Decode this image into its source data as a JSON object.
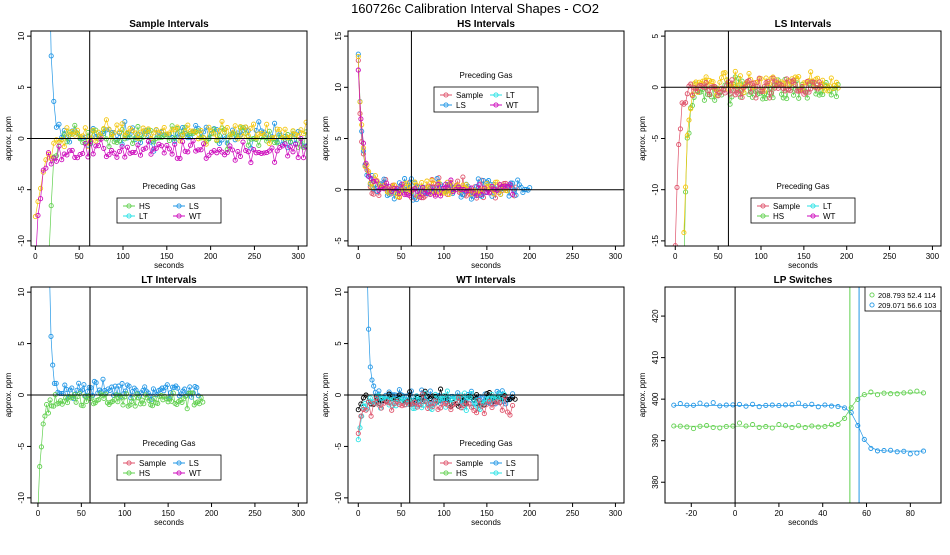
{
  "page_title": "160726c   Calibration Interval Shapes - CO2",
  "colors": {
    "Sample": "#df536b",
    "HS": "#61d04f",
    "LS": "#2297e6",
    "LT": "#28e2e5",
    "WT": "#cd0bbc",
    "Other": "#000000",
    "Gold": "#f5c710"
  },
  "chart_data": [
    {
      "id": "sample",
      "type": "scatter",
      "title": "Sample Intervals",
      "xlabel": "seconds",
      "ylabel": "approx. ppm",
      "xlim": [
        -5,
        310
      ],
      "ylim": [
        -10.5,
        10.5
      ],
      "xticks": [
        0,
        50,
        100,
        150,
        200,
        250,
        300
      ],
      "yticks": [
        -10,
        -5,
        0,
        5,
        10
      ],
      "xtick_labels": [
        "0",
        "50",
        "100",
        "150",
        "200",
        "250",
        "300"
      ],
      "ytick_labels": [
        "-10",
        "-5",
        "0",
        "5",
        "10"
      ],
      "vline": 62,
      "hline": 0,
      "legend": {
        "title": "Preceding Gas",
        "position": "bottom-center",
        "entries": [
          "HS",
          "LS",
          "LT",
          "WT"
        ]
      },
      "series": [
        {
          "key": "LS",
          "start": 15,
          "end": 310,
          "step": 3,
          "initial": 20,
          "tau": 3,
          "base": 0.3,
          "noise": 1.4
        },
        {
          "key": "HS",
          "start": 15,
          "end": 310,
          "step": 3,
          "initial": -13,
          "tau": 4,
          "base": 0.2,
          "noise": 1.2
        },
        {
          "key": "Gold",
          "start": 0,
          "end": 310,
          "step": 3,
          "initial": -8,
          "tau": 12,
          "base": 0.6,
          "noise": 1.2
        },
        {
          "key": "WT",
          "start": 0,
          "end": 310,
          "step": 3,
          "initial": -11,
          "tau": 6,
          "base": -1.2,
          "noise": 1.1
        }
      ]
    },
    {
      "id": "hs",
      "type": "scatter",
      "title": "HS Intervals",
      "xlabel": "seconds",
      "ylabel": "approx. ppm",
      "xlim": [
        -12,
        310
      ],
      "ylim": [
        -5.5,
        15.5
      ],
      "xticks": [
        0,
        50,
        100,
        150,
        200,
        250,
        300
      ],
      "yticks": [
        -5,
        0,
        5,
        10,
        15
      ],
      "xtick_labels": [
        "0",
        "50",
        "100",
        "150",
        "200",
        "250",
        "300"
      ],
      "ytick_labels": [
        "-5",
        "0",
        "5",
        "10",
        "15"
      ],
      "vline": 62,
      "hline": 0,
      "legend": {
        "title": "Preceding Gas",
        "position": "top-center",
        "entries": [
          "Sample",
          "LT",
          "LS",
          "WT"
        ]
      },
      "series": [
        {
          "key": "Sample",
          "start": 0,
          "end": 185,
          "step": 2,
          "initial": 12,
          "tau": 5,
          "base": 0,
          "noise": 1.3
        },
        {
          "key": "LS",
          "start": 0,
          "end": 200,
          "step": 2,
          "initial": 14,
          "tau": 5,
          "base": 0,
          "noise": 1.2
        },
        {
          "key": "Gold",
          "start": 0,
          "end": 175,
          "step": 2,
          "initial": 13,
          "tau": 5,
          "base": 0,
          "noise": 1.1
        },
        {
          "key": "WT",
          "start": 0,
          "end": 180,
          "step": 3,
          "initial": 11,
          "tau": 6,
          "base": 0,
          "noise": 0.9
        }
      ]
    },
    {
      "id": "ls",
      "type": "scatter",
      "title": "LS Intervals",
      "xlabel": "seconds",
      "ylabel": "approx. ppm",
      "xlim": [
        -12,
        310
      ],
      "ylim": [
        -15.5,
        5.5
      ],
      "xticks": [
        0,
        50,
        100,
        150,
        200,
        250,
        300
      ],
      "yticks": [
        -15,
        -10,
        -5,
        0,
        5
      ],
      "xtick_labels": [
        "0",
        "50",
        "100",
        "150",
        "200",
        "250",
        "300"
      ],
      "ytick_labels": [
        "-15",
        "-10",
        "-5",
        "0",
        "5"
      ],
      "vline": 62,
      "hline": 0,
      "legend": {
        "title": "Preceding Gas",
        "position": "bottom-center",
        "entries": [
          "Sample",
          "LT",
          "HS",
          "WT"
        ]
      },
      "series": [
        {
          "key": "HS",
          "start": 10,
          "end": 190,
          "step": 2,
          "initial": -16,
          "tau": 4,
          "base": -0.2,
          "noise": 1.5
        },
        {
          "key": "Gold",
          "start": 10,
          "end": 190,
          "step": 2,
          "initial": -15,
          "tau": 4,
          "base": 0.4,
          "noise": 1.2
        },
        {
          "key": "Sample",
          "start": 0,
          "end": 170,
          "step": 2,
          "initial": -16,
          "tau": 4,
          "base": 0,
          "noise": 1.0
        }
      ]
    },
    {
      "id": "lt",
      "type": "scatter",
      "title": "LT Intervals",
      "xlabel": "seconds",
      "ylabel": "approx. ppm",
      "xlim": [
        -8,
        310
      ],
      "ylim": [
        -10.5,
        10.5
      ],
      "xticks": [
        0,
        50,
        100,
        150,
        200,
        250,
        300
      ],
      "yticks": [
        -10,
        -5,
        0,
        5,
        10
      ],
      "xtick_labels": [
        "0",
        "50",
        "100",
        "150",
        "200",
        "250",
        "300"
      ],
      "ytick_labels": [
        "-10",
        "-5",
        "0",
        "5",
        "10"
      ],
      "vline": 60,
      "hline": 0,
      "legend": {
        "title": "Preceding Gas",
        "position": "bottom-center",
        "entries": [
          "Sample",
          "LS",
          "HS",
          "WT"
        ]
      },
      "series": [
        {
          "key": "LS",
          "start": 13,
          "end": 185,
          "step": 2,
          "initial": 12,
          "tau": 2.5,
          "base": 0.5,
          "noise": 1.1
        },
        {
          "key": "HS",
          "start": 0,
          "end": 190,
          "step": 2,
          "initial": -11,
          "tau": 4,
          "base": -0.5,
          "noise": 1.0
        }
      ]
    },
    {
      "id": "wt",
      "type": "scatter",
      "title": "WT Intervals",
      "xlabel": "seconds",
      "ylabel": "approx. ppm",
      "xlim": [
        -12,
        310
      ],
      "ylim": [
        -10.5,
        10.5
      ],
      "xticks": [
        0,
        50,
        100,
        150,
        200,
        250,
        300
      ],
      "yticks": [
        -10,
        -5,
        0,
        5,
        10
      ],
      "xtick_labels": [
        "0",
        "50",
        "100",
        "150",
        "200",
        "250",
        "300"
      ],
      "ytick_labels": [
        "-10",
        "-5",
        "0",
        "5",
        "10"
      ],
      "vline": 60,
      "hline": 0,
      "legend": {
        "title": "Preceding Gas",
        "position": "bottom-center",
        "entries": [
          "Sample",
          "LS",
          "HS",
          "LT"
        ]
      },
      "series": [
        {
          "key": "LS",
          "start": 10,
          "end": 180,
          "step": 2,
          "initial": 14,
          "tau": 3,
          "base": -0.3,
          "noise": 1.0
        },
        {
          "key": "Other",
          "start": 0,
          "end": 185,
          "step": 3,
          "initial": -1,
          "tau": 5,
          "base": -0.4,
          "noise": 0.9
        },
        {
          "key": "LT",
          "start": 0,
          "end": 170,
          "step": 2,
          "initial": -4,
          "tau": 4,
          "base": -0.5,
          "noise": 1.1
        },
        {
          "key": "Sample",
          "start": 0,
          "end": 180,
          "step": 3,
          "initial": -3,
          "tau": 4,
          "base": -1.0,
          "noise": 0.9
        }
      ]
    },
    {
      "id": "lp",
      "type": "line",
      "title": "LP Switches",
      "xlabel": "seconds",
      "ylabel": "approx. ppm",
      "xlim": [
        -32,
        94
      ],
      "ylim": [
        375,
        427
      ],
      "xticks": [
        -20,
        0,
        20,
        40,
        60,
        80
      ],
      "yticks": [
        380,
        390,
        400,
        410,
        420
      ],
      "xtick_labels": [
        "-20",
        "0",
        "20",
        "40",
        "60",
        "80"
      ],
      "ytick_labels": [
        "380",
        "390",
        "400",
        "410",
        "420"
      ],
      "vline": 0,
      "vlines_colored": [
        {
          "x": 52.4,
          "key": "HS"
        },
        {
          "x": 56.6,
          "key": "LS"
        }
      ],
      "legend": {
        "position": "top-right",
        "entries": [
          {
            "key": "HS",
            "label": "208.793 52.4 114"
          },
          {
            "key": "LS",
            "label": "209.071 56.6 103"
          }
        ]
      },
      "series": [
        {
          "key": "HS",
          "x_start": -28,
          "x_end": 88,
          "step": 3,
          "level1": 393.5,
          "level2": 401.5,
          "switch": 52.4
        },
        {
          "key": "LS",
          "x_start": -28,
          "x_end": 88,
          "step": 3,
          "level1": 398.5,
          "level2": 387.5,
          "switch": 56.6
        }
      ]
    }
  ]
}
